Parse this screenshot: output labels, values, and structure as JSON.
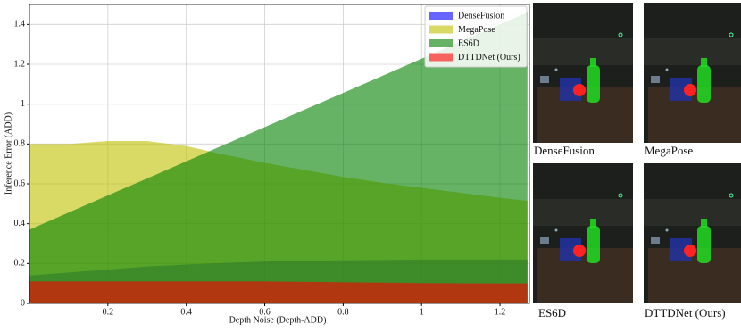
{
  "chart_data": {
    "type": "area",
    "x_label": "Depth Noise (Depth-ADD)",
    "y_label": "Inference Error (ADD)",
    "x": [
      0.0,
      0.1,
      0.2,
      0.3,
      0.4,
      0.5,
      0.6,
      0.7,
      0.8,
      0.9,
      1.0,
      1.1,
      1.2,
      1.27
    ],
    "series": [
      {
        "name": "DenseFusion",
        "color": "#0000ff",
        "values": [
          0.14,
          0.155,
          0.17,
          0.185,
          0.195,
          0.203,
          0.21,
          0.213,
          0.216,
          0.218,
          0.22,
          0.22,
          0.22,
          0.22
        ]
      },
      {
        "name": "MegaPose",
        "color": "#bfbf00",
        "values": [
          0.8,
          0.8,
          0.815,
          0.815,
          0.79,
          0.745,
          0.705,
          0.67,
          0.635,
          0.605,
          0.58,
          0.555,
          0.53,
          0.515
        ]
      },
      {
        "name": "ES6D",
        "color": "#008000",
        "values": [
          0.37,
          0.456,
          0.542,
          0.627,
          0.713,
          0.799,
          0.885,
          0.971,
          1.056,
          1.142,
          1.228,
          1.314,
          1.4,
          1.46
        ]
      },
      {
        "name": "DTTDNet (Ours)",
        "color": "#ff0000",
        "values": [
          0.11,
          0.11,
          0.11,
          0.11,
          0.11,
          0.11,
          0.11,
          0.108,
          0.106,
          0.104,
          0.102,
          0.101,
          0.1,
          0.1
        ]
      }
    ],
    "xlim": [
      0.0,
      1.275
    ],
    "ylim": [
      0.0,
      1.5
    ],
    "xticks": [
      0.2,
      0.4,
      0.6,
      0.8,
      1.0,
      1.2
    ],
    "yticks": [
      0.0,
      0.2,
      0.4,
      0.6,
      0.8,
      1.0,
      1.2,
      1.4
    ],
    "grid": true,
    "legend": "upper right",
    "opacity": 0.6
  },
  "image_panels": [
    {
      "caption": "DenseFusion"
    },
    {
      "caption": "MegaPose"
    },
    {
      "caption": "ES6D"
    },
    {
      "caption": "DTTDNet (Ours)"
    }
  ]
}
